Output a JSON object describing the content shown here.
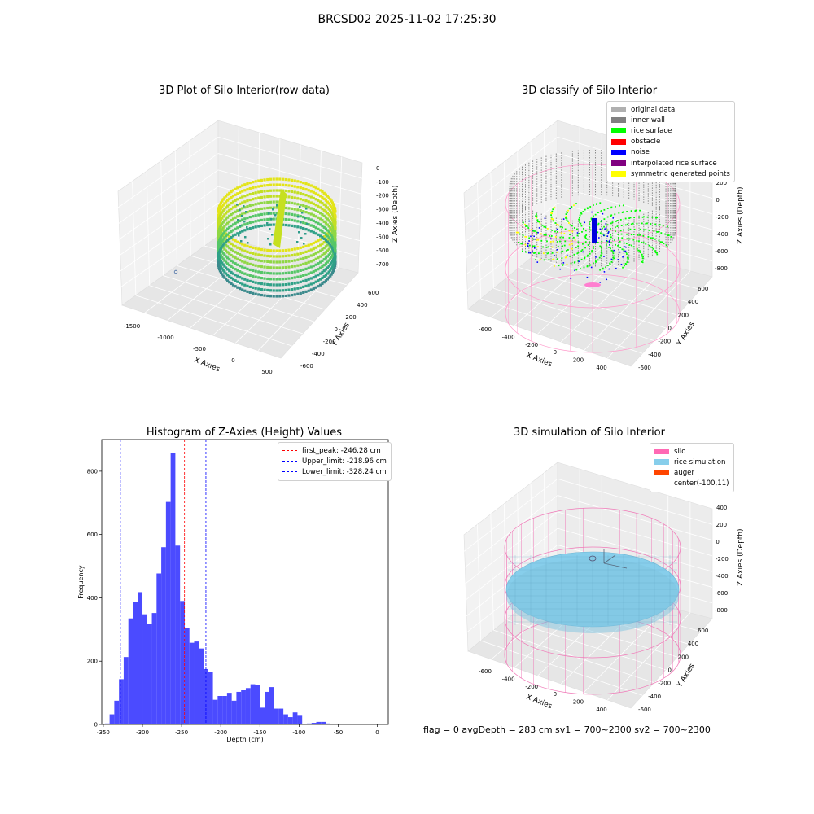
{
  "suptitle": "BRCSD02 2025-11-02 17:25:30",
  "plots": {
    "raw": {
      "title": "3D Plot of Silo Interior(row data)",
      "xlabel": "X Axies",
      "ylabel": "Y Axies",
      "zlabel": "Z Axies (Depth)",
      "xticks": [
        "-1500",
        "-1000",
        "-500",
        "0",
        "500"
      ],
      "yticks": [
        "600",
        "400",
        "200",
        "0",
        "-200",
        "-400",
        "-600"
      ],
      "zticks": [
        "0",
        "-100",
        "-200",
        "-300",
        "-400",
        "-500",
        "-600",
        "-700"
      ]
    },
    "classify": {
      "title": "3D classify of Silo Interior",
      "xlabel": "X Axies",
      "ylabel": "Y Axies",
      "zlabel": "Z Axies (Depth)",
      "xticks": [
        "-600",
        "-400",
        "-200",
        "0",
        "200",
        "400"
      ],
      "yticks": [
        "600",
        "400",
        "200",
        "0",
        "-200",
        "-400",
        "-600"
      ],
      "zticks": [
        "400",
        "200",
        "0",
        "-200",
        "-400",
        "-600",
        "-800"
      ],
      "legend": [
        {
          "label": "original data",
          "color": "#b0b0b0"
        },
        {
          "label": "inner wall",
          "color": "#808080"
        },
        {
          "label": "rice surface",
          "color": "#00ff00"
        },
        {
          "label": "obstacle",
          "color": "#ff0000"
        },
        {
          "label": "noise",
          "color": "#0000ff"
        },
        {
          "label": "interpolated rice surface",
          "color": "#800080"
        },
        {
          "label": "symmetric generated points",
          "color": "#ffff00"
        }
      ]
    },
    "simulation": {
      "title": "3D simulation of Silo Interior",
      "xlabel": "X Axies",
      "ylabel": "Y Axies",
      "zlabel": "Z Axies (Depth)",
      "xticks": [
        "-600",
        "-400",
        "-200",
        "0",
        "200",
        "400"
      ],
      "yticks": [
        "600",
        "400",
        "200",
        "0",
        "-200",
        "-400",
        "-600"
      ],
      "zticks": [
        "400",
        "200",
        "0",
        "-200",
        "-400",
        "-600",
        "-800"
      ],
      "legend": [
        {
          "label": "silo",
          "color": "#ff69b4"
        },
        {
          "label": "rice simulation",
          "color": "#87ceeb"
        },
        {
          "label": "auger",
          "color": "#ff4500"
        },
        {
          "label": "center(-100,11)",
          "color": ""
        }
      ]
    }
  },
  "footer": "flag = 0     avgDepth = 283 cm  sv1 = 700~2300  sv2 = 700~2300",
  "chart_data": {
    "type": "bar",
    "title": "Histogram of Z-Axies (Height) Values",
    "xlabel": "Depth (cm)",
    "ylabel": "Frequency",
    "xlim": [
      -352,
      14
    ],
    "ylim": [
      0,
      900
    ],
    "xticks": [
      -350,
      -300,
      -250,
      -200,
      -150,
      -100,
      -50,
      0
    ],
    "yticks": [
      0,
      200,
      400,
      600,
      800
    ],
    "bin_width": 6,
    "bin_start": -348,
    "values": [
      3,
      32,
      75,
      143,
      213,
      335,
      386,
      418,
      348,
      318,
      352,
      477,
      560,
      703,
      858,
      565,
      390,
      305,
      258,
      262,
      240,
      175,
      165,
      78,
      90,
      90,
      100,
      75,
      103,
      108,
      115,
      127,
      124,
      53,
      103,
      118,
      50,
      50,
      32,
      23,
      38,
      30,
      0,
      3,
      5,
      8,
      8,
      3
    ],
    "color": "#4b4bff",
    "vlines": [
      {
        "label": "first_peak: -246.28 cm",
        "x": -246.28,
        "color": "#ff0000"
      },
      {
        "label": "Upper_limit: -218.96 cm",
        "x": -218.96,
        "color": "#0000ff"
      },
      {
        "label": "Lower_limit: -328.24 cm",
        "x": -328.24,
        "color": "#0000ff"
      }
    ]
  }
}
